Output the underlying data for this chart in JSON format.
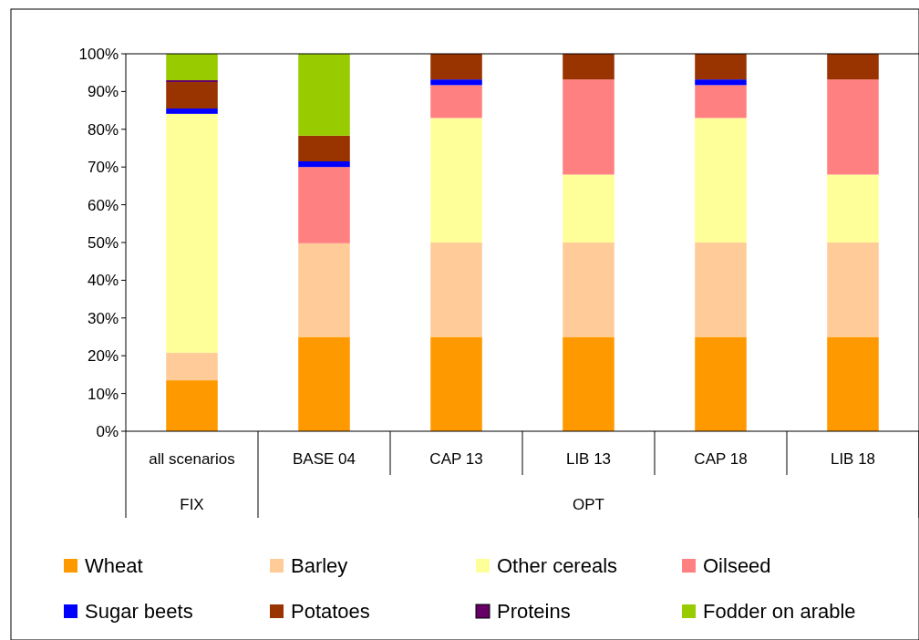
{
  "chart_data": {
    "type": "bar",
    "stacked": true,
    "categories": [
      "all scenarios",
      "BASE 04",
      "CAP 13",
      "LIB 13",
      "CAP 18",
      "LIB 18"
    ],
    "annotations": [
      "FIX",
      "OPT"
    ],
    "series": [
      {
        "name": "Wheat",
        "color": "#ff9900",
        "values": [
          13.5,
          25,
          25,
          25,
          25,
          25
        ]
      },
      {
        "name": "Barley",
        "color": "#ffcc99",
        "values": [
          7.3,
          24.8,
          25,
          25,
          25,
          25
        ]
      },
      {
        "name": "Other cereals",
        "color": "#ffff99",
        "values": [
          63.3,
          0,
          33,
          18,
          33,
          18
        ]
      },
      {
        "name": "Oilseed",
        "color": "#ff8080",
        "values": [
          0,
          20.2,
          8.7,
          25.2,
          8.7,
          25.2
        ]
      },
      {
        "name": "Sugar beets",
        "color": "#0000ff",
        "values": [
          1.4,
          1.5,
          1.5,
          0,
          1.5,
          0
        ]
      },
      {
        "name": "Potatoes",
        "color": "#993300",
        "values": [
          7,
          6.8,
          6.8,
          6.8,
          6.8,
          6.8
        ]
      },
      {
        "name": "Proteins",
        "color": "#660066",
        "values": [
          0.5,
          0,
          0,
          0,
          0,
          0
        ]
      },
      {
        "name": "Fodder on arable",
        "color": "#99cc00",
        "values": [
          7,
          21.7,
          0,
          0,
          0,
          0
        ]
      }
    ],
    "ylim": [
      0,
      100
    ],
    "yticks": [
      {
        "value": 0,
        "label": "0%"
      },
      {
        "value": 10,
        "label": "10%"
      },
      {
        "value": 20,
        "label": "20%"
      },
      {
        "value": 30,
        "label": "30%"
      },
      {
        "value": 40,
        "label": "40%"
      },
      {
        "value": 50,
        "label": "50%"
      },
      {
        "value": 60,
        "label": "60%"
      },
      {
        "value": 70,
        "label": "70%"
      },
      {
        "value": 80,
        "label": "80%"
      },
      {
        "value": 90,
        "label": "90%"
      },
      {
        "value": 100,
        "label": "100%"
      }
    ],
    "legend": "bottom"
  }
}
